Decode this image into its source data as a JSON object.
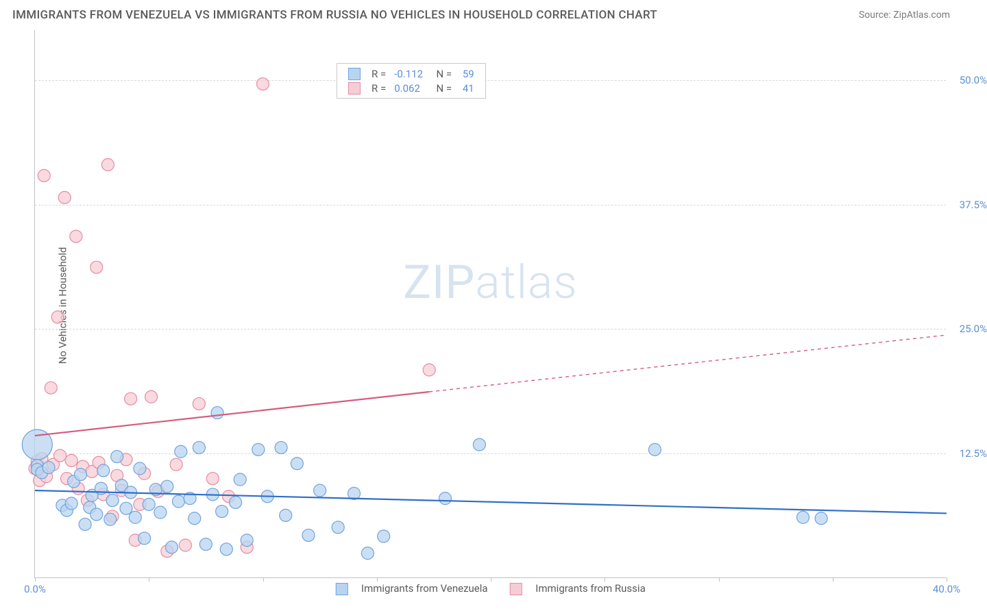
{
  "title": "IMMIGRANTS FROM VENEZUELA VS IMMIGRANTS FROM RUSSIA NO VEHICLES IN HOUSEHOLD CORRELATION CHART",
  "source_label": "Source: ZipAtlas.com",
  "ylabel": "No Vehicles in Household",
  "watermark": {
    "zip": "ZIP",
    "atlas": "atlas"
  },
  "chart": {
    "type": "scatter",
    "background": "#ffffff",
    "grid_color": "#d8d8d8",
    "axis_color": "#bfbfbf",
    "xlim": [
      0,
      40
    ],
    "ylim": [
      0,
      55
    ],
    "xticks": [
      0,
      5,
      10,
      15,
      20,
      25,
      30,
      35,
      40
    ],
    "xtick_labels": [
      "0.0%",
      "",
      "",
      "",
      "",
      "",
      "",
      "",
      "40.0%"
    ],
    "yticks": [
      12.5,
      25.0,
      37.5,
      50.0
    ],
    "ytick_labels": [
      "12.5%",
      "25.0%",
      "37.5%",
      "50.0%"
    ],
    "series": [
      {
        "name": "Immigrants from Venezuela",
        "color_fill": "#b9d4f0",
        "color_stroke": "#6fa3dd",
        "line_color": "#2f6fc7",
        "R": "-0.112",
        "N": "59",
        "trend": {
          "x1": 0,
          "y1": 8.8,
          "x2": 40,
          "y2": 6.5
        },
        "points": [
          [
            0.1,
            13.4,
            22
          ],
          [
            0.1,
            11.3,
            9
          ],
          [
            0.1,
            10.9,
            9
          ],
          [
            0.3,
            10.6,
            9
          ],
          [
            0.6,
            11.1,
            9
          ],
          [
            1.2,
            7.3,
            9
          ],
          [
            1.4,
            6.8,
            9
          ],
          [
            1.6,
            7.5,
            9
          ],
          [
            1.7,
            9.7,
            9
          ],
          [
            2.0,
            10.4,
            9
          ],
          [
            2.2,
            5.4,
            9
          ],
          [
            2.4,
            7.1,
            9
          ],
          [
            2.5,
            8.3,
            9
          ],
          [
            2.7,
            6.4,
            9
          ],
          [
            2.9,
            9.0,
            9
          ],
          [
            3.0,
            10.8,
            9
          ],
          [
            3.3,
            5.9,
            9
          ],
          [
            3.4,
            7.8,
            9
          ],
          [
            3.6,
            12.2,
            9
          ],
          [
            3.8,
            9.3,
            9
          ],
          [
            4.0,
            7.0,
            9
          ],
          [
            4.2,
            8.6,
            9
          ],
          [
            4.4,
            6.1,
            9
          ],
          [
            4.6,
            11.0,
            9
          ],
          [
            4.8,
            4.0,
            9
          ],
          [
            5.0,
            7.4,
            9
          ],
          [
            5.3,
            8.9,
            9
          ],
          [
            5.5,
            6.6,
            9
          ],
          [
            5.8,
            9.2,
            9
          ],
          [
            6.0,
            3.1,
            9
          ],
          [
            6.3,
            7.7,
            9
          ],
          [
            6.4,
            12.7,
            9
          ],
          [
            6.8,
            8.0,
            9
          ],
          [
            7.0,
            6.0,
            9
          ],
          [
            7.2,
            13.1,
            9
          ],
          [
            7.5,
            3.4,
            9
          ],
          [
            7.8,
            8.4,
            9
          ],
          [
            8.0,
            16.6,
            9
          ],
          [
            8.2,
            6.7,
            9
          ],
          [
            8.4,
            2.9,
            9
          ],
          [
            8.8,
            7.6,
            9
          ],
          [
            9.0,
            9.9,
            9
          ],
          [
            9.3,
            3.8,
            9
          ],
          [
            9.8,
            12.9,
            9
          ],
          [
            10.2,
            8.2,
            9
          ],
          [
            10.8,
            13.1,
            9
          ],
          [
            11.0,
            6.3,
            9
          ],
          [
            11.5,
            11.5,
            9
          ],
          [
            12.0,
            4.3,
            9
          ],
          [
            12.5,
            8.8,
            9
          ],
          [
            13.3,
            5.1,
            9
          ],
          [
            14.0,
            8.5,
            9
          ],
          [
            14.6,
            2.5,
            9
          ],
          [
            15.3,
            4.2,
            9
          ],
          [
            18.0,
            8.0,
            9
          ],
          [
            19.5,
            13.4,
            9
          ],
          [
            27.2,
            12.9,
            9
          ],
          [
            33.7,
            6.1,
            9
          ],
          [
            34.5,
            6.0,
            9
          ]
        ]
      },
      {
        "name": "Immigrants from Russia",
        "color_fill": "#f5cdd6",
        "color_stroke": "#e78ba0",
        "line_color": "#d65b7d",
        "R": "0.062",
        "N": "41",
        "trend_solid": {
          "x1": 0,
          "y1": 14.3,
          "x2": 17.3,
          "y2": 18.7
        },
        "trend_dash": {
          "x1": 17.3,
          "y1": 18.7,
          "x2": 40,
          "y2": 24.4
        },
        "points": [
          [
            0.0,
            11.0,
            9
          ],
          [
            0.1,
            11.7,
            9
          ],
          [
            0.2,
            9.8,
            9
          ],
          [
            0.3,
            12.0,
            9
          ],
          [
            0.4,
            40.4,
            9
          ],
          [
            0.5,
            10.2,
            9
          ],
          [
            0.7,
            19.1,
            9
          ],
          [
            0.8,
            11.4,
            9
          ],
          [
            1.0,
            26.2,
            9
          ],
          [
            1.1,
            12.3,
            9
          ],
          [
            1.3,
            38.2,
            9
          ],
          [
            1.4,
            10.0,
            9
          ],
          [
            1.6,
            11.8,
            9
          ],
          [
            1.8,
            34.3,
            9
          ],
          [
            1.9,
            9.0,
            9
          ],
          [
            2.1,
            11.2,
            9
          ],
          [
            2.3,
            7.8,
            9
          ],
          [
            2.5,
            10.7,
            9
          ],
          [
            2.7,
            31.2,
            9
          ],
          [
            2.8,
            11.6,
            9
          ],
          [
            3.0,
            8.4,
            9
          ],
          [
            3.2,
            41.5,
            9
          ],
          [
            3.4,
            6.2,
            9
          ],
          [
            3.6,
            10.3,
            9
          ],
          [
            3.8,
            8.8,
            9
          ],
          [
            4.0,
            11.9,
            9
          ],
          [
            4.2,
            18.0,
            9
          ],
          [
            4.4,
            3.8,
            9
          ],
          [
            4.6,
            7.4,
            9
          ],
          [
            4.8,
            10.5,
            9
          ],
          [
            5.1,
            18.2,
            9
          ],
          [
            5.4,
            8.7,
            9
          ],
          [
            5.8,
            2.7,
            9
          ],
          [
            6.2,
            11.4,
            9
          ],
          [
            6.6,
            3.3,
            9
          ],
          [
            7.2,
            17.5,
            9
          ],
          [
            7.8,
            10.0,
            9
          ],
          [
            8.5,
            8.2,
            9
          ],
          [
            9.3,
            3.1,
            9
          ],
          [
            10.0,
            49.6,
            9
          ],
          [
            17.3,
            20.9,
            9
          ]
        ]
      }
    ]
  }
}
